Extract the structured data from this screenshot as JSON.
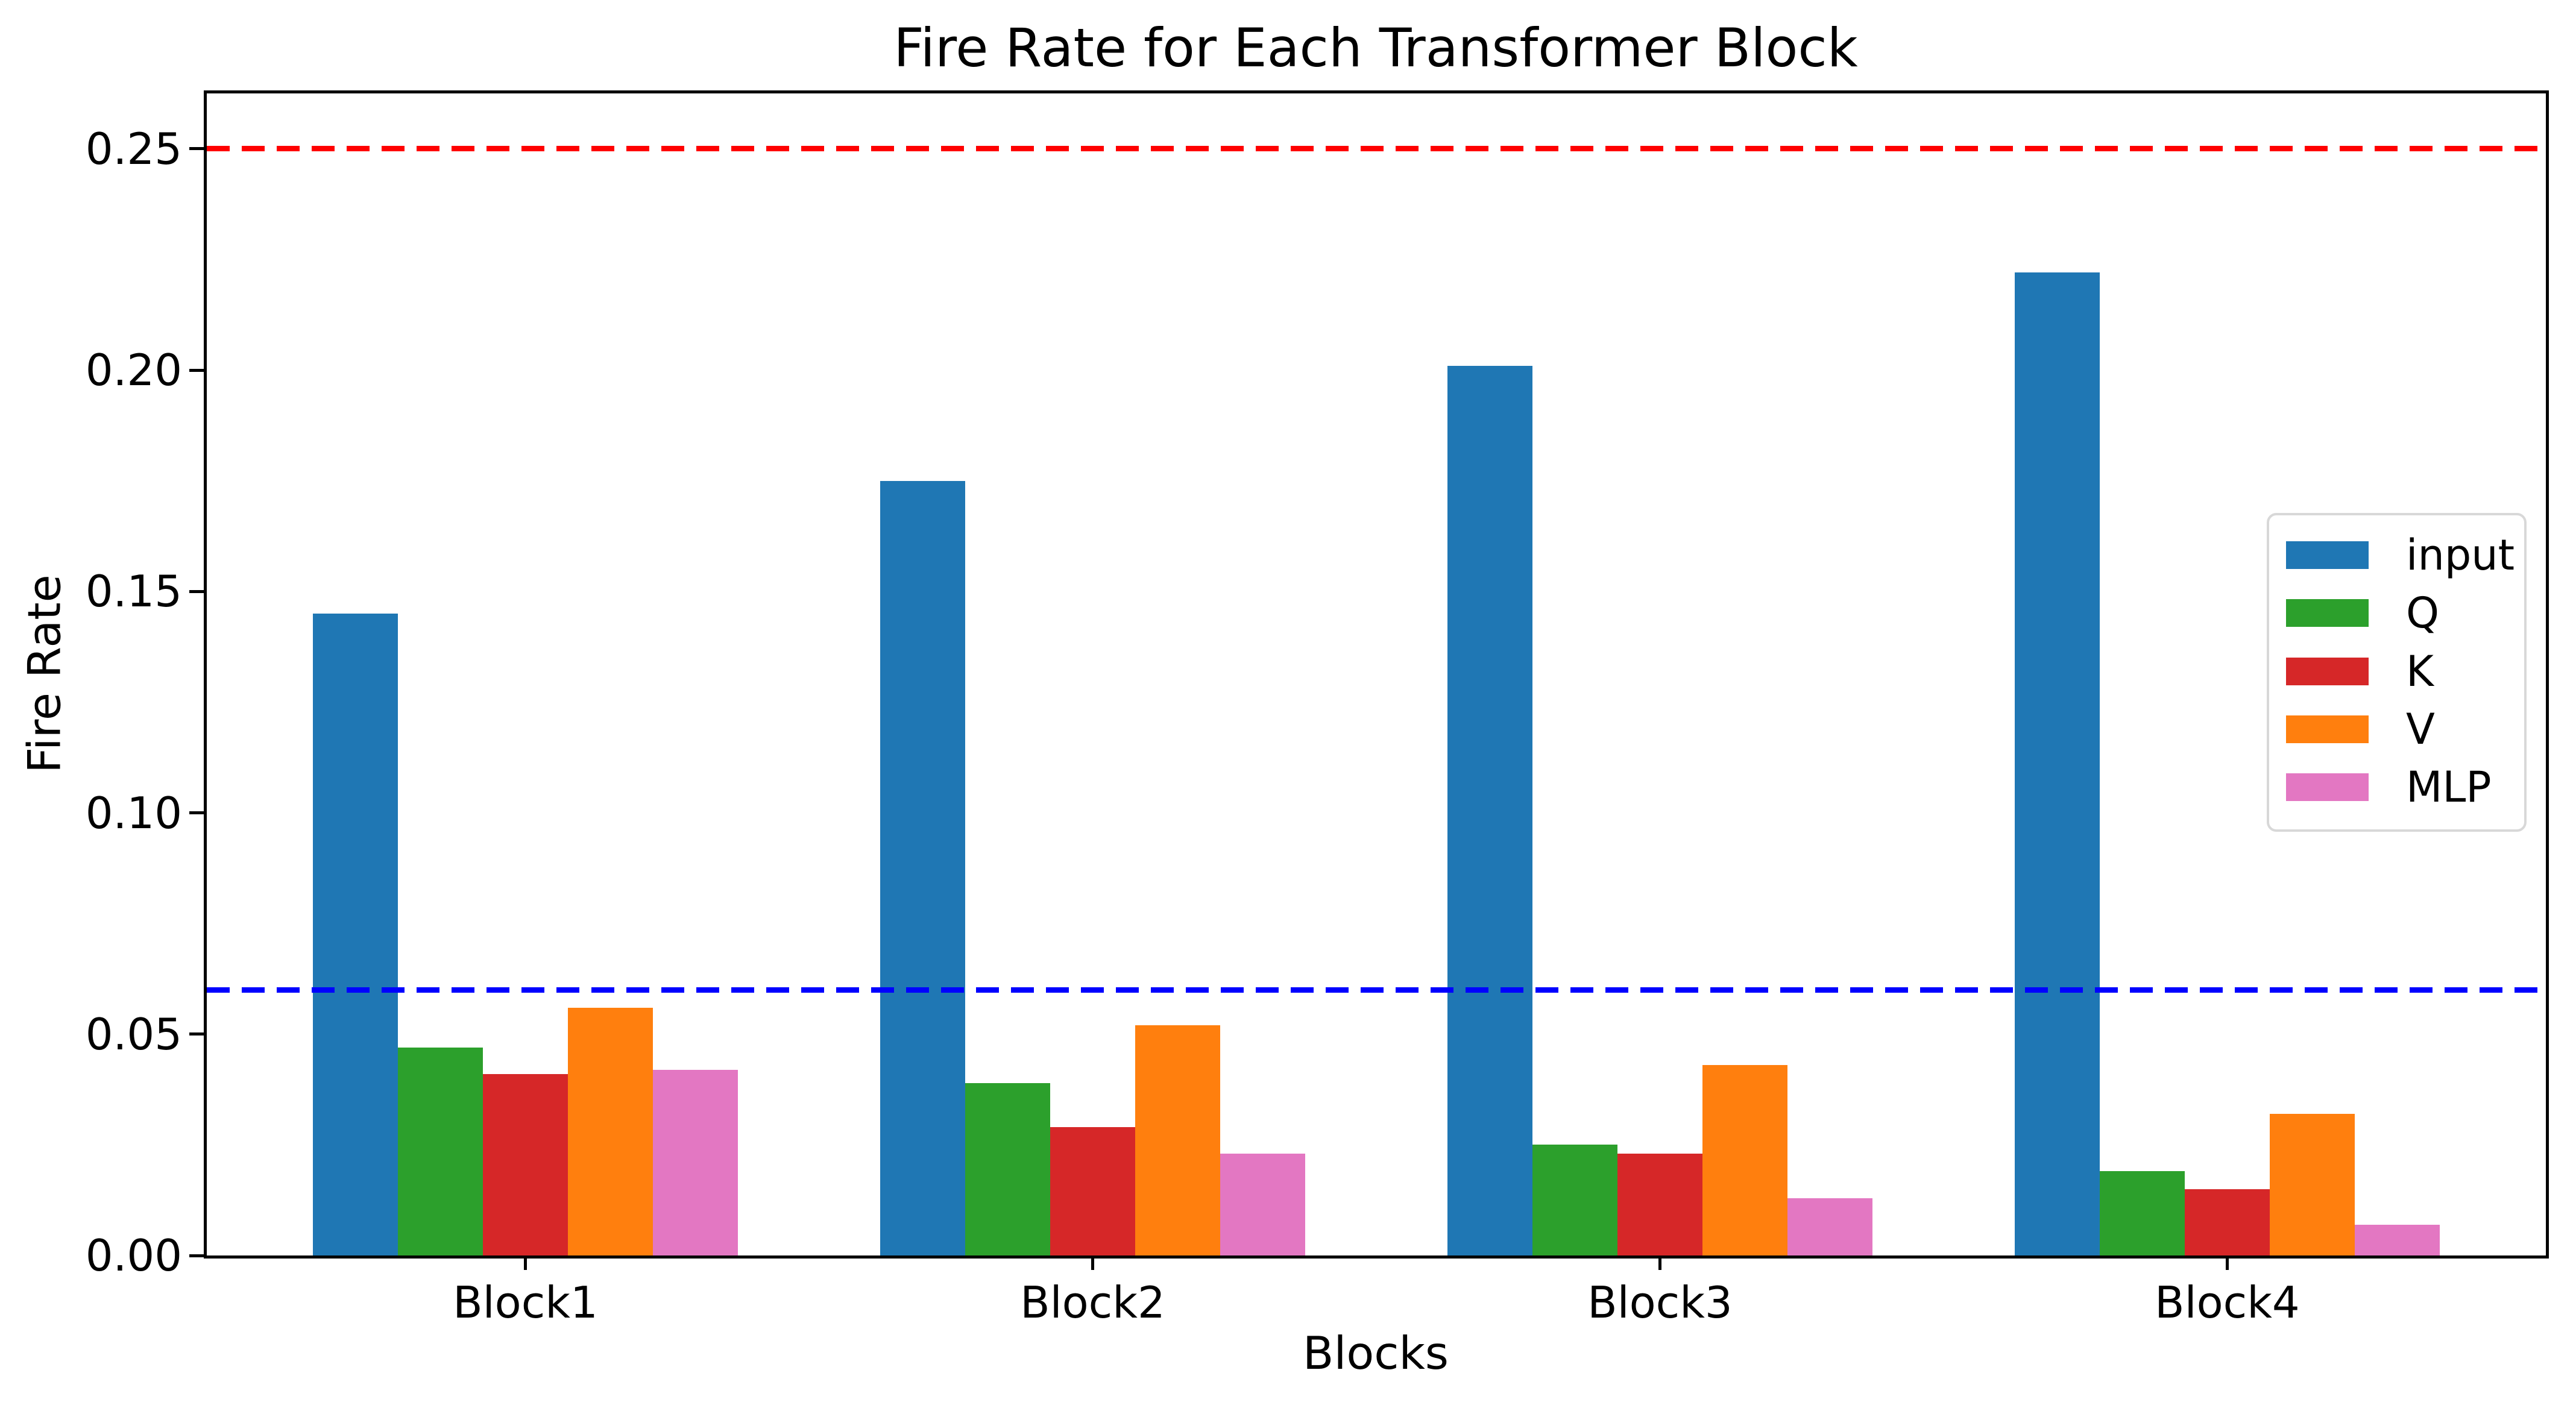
{
  "chart_data": {
    "type": "bar",
    "title": "Fire Rate for Each Transformer Block",
    "xlabel": "Blocks",
    "ylabel": "Fire Rate",
    "categories": [
      "Block1",
      "Block2",
      "Block3",
      "Block4"
    ],
    "series": [
      {
        "name": "input",
        "color": "#1f77b4",
        "values": [
          0.145,
          0.175,
          0.201,
          0.222
        ]
      },
      {
        "name": "Q",
        "color": "#2ca02c",
        "values": [
          0.047,
          0.039,
          0.025,
          0.019
        ]
      },
      {
        "name": "K",
        "color": "#d62728",
        "values": [
          0.041,
          0.029,
          0.023,
          0.015
        ]
      },
      {
        "name": "V",
        "color": "#ff7f0e",
        "values": [
          0.056,
          0.052,
          0.043,
          0.032
        ]
      },
      {
        "name": "MLP",
        "color": "#e377c2",
        "values": [
          0.042,
          0.023,
          0.013,
          0.007
        ]
      }
    ],
    "yticks": [
      "0.00",
      "0.05",
      "0.10",
      "0.15",
      "0.20",
      "0.25"
    ],
    "ylim": [
      0,
      0.2625
    ],
    "grid": false,
    "legend_position": "center right",
    "hlines": [
      {
        "y": 0.25,
        "color": "#ff0000",
        "style": "dashed",
        "name": "red-threshold"
      },
      {
        "y": 0.06,
        "color": "#0000ff",
        "style": "dashed",
        "name": "blue-threshold"
      }
    ]
  }
}
